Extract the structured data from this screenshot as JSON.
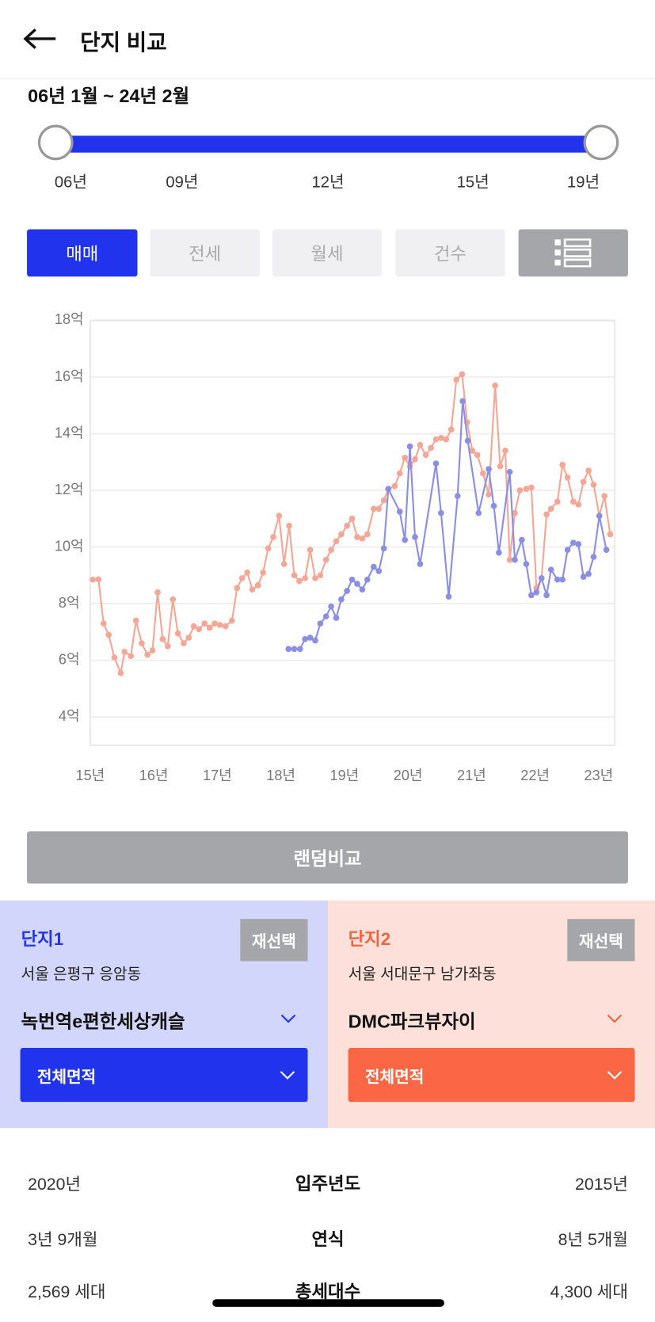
{
  "header": {
    "title": "단지 비교"
  },
  "period": {
    "range": "06년 1월 ~ 24년 2월",
    "labels": [
      "06년",
      "09년",
      "12년",
      "15년",
      "19년"
    ]
  },
  "tabs": [
    "매매",
    "전세",
    "월세",
    "건수"
  ],
  "chart_data": {
    "type": "line",
    "xlim": [
      15,
      23.25
    ],
    "xticks": [
      {
        "value": 15,
        "label": "15년"
      },
      {
        "value": 16,
        "label": "16년"
      },
      {
        "value": 17,
        "label": "17년"
      },
      {
        "value": 18,
        "label": "18년"
      },
      {
        "value": 19,
        "label": "19년"
      },
      {
        "value": 20,
        "label": "20년"
      },
      {
        "value": 21,
        "label": "21년"
      },
      {
        "value": 22,
        "label": "22년"
      },
      {
        "value": 23,
        "label": "23년"
      }
    ],
    "ylim": [
      3,
      18
    ],
    "yticks": [
      {
        "value": 4,
        "label": "4억"
      },
      {
        "value": 6,
        "label": "6억"
      },
      {
        "value": 8,
        "label": "8억"
      },
      {
        "value": 10,
        "label": "10억"
      },
      {
        "value": 12,
        "label": "12억"
      },
      {
        "value": 14,
        "label": "14억"
      },
      {
        "value": 16,
        "label": "16억"
      },
      {
        "value": 18,
        "label": "18억"
      }
    ],
    "grid": true,
    "series": [
      {
        "color": "#f4a796",
        "x": [
          15.04,
          15.13,
          15.21,
          15.29,
          15.38,
          15.48,
          15.54,
          15.64,
          15.72,
          15.81,
          15.9,
          15.98,
          16.06,
          16.14,
          16.22,
          16.3,
          16.38,
          16.47,
          16.55,
          16.63,
          16.71,
          16.8,
          16.88,
          16.96,
          17.04,
          17.13,
          17.23,
          17.31,
          17.39,
          17.47,
          17.55,
          17.64,
          17.72,
          17.8,
          17.88,
          17.97,
          18.05,
          18.13,
          18.21,
          18.29,
          18.38,
          18.46,
          18.54,
          18.62,
          18.71,
          18.79,
          18.87,
          18.95,
          19.04,
          19.12,
          19.2,
          19.28,
          19.36,
          19.46,
          19.54,
          19.62,
          19.69,
          19.79,
          19.87,
          19.95,
          20.03,
          20.11,
          20.19,
          20.28,
          20.36,
          20.44,
          20.52,
          20.6,
          20.68,
          20.76,
          20.85,
          20.93,
          21.01,
          21.09,
          21.18,
          21.27,
          21.37,
          21.45,
          21.53,
          21.6,
          21.68,
          21.76,
          21.86,
          21.94,
          22.02,
          22.1,
          22.18,
          22.25,
          22.35,
          22.43,
          22.51,
          22.6,
          22.68,
          22.76,
          22.84,
          22.92,
          23.01,
          23.09,
          23.18
        ],
        "values": [
          8.85,
          8.86,
          7.3,
          6.9,
          6.1,
          5.55,
          6.3,
          6.15,
          7.4,
          6.6,
          6.2,
          6.35,
          8.4,
          6.75,
          6.5,
          8.15,
          6.95,
          6.6,
          6.8,
          7.2,
          7.1,
          7.3,
          7.15,
          7.3,
          7.25,
          7.2,
          7.4,
          8.55,
          8.9,
          9.1,
          8.5,
          8.65,
          9.1,
          9.95,
          10.35,
          11.1,
          9.4,
          10.75,
          9.0,
          8.8,
          8.9,
          9.9,
          8.9,
          9.0,
          9.55,
          9.9,
          10.2,
          10.45,
          10.75,
          11.0,
          10.35,
          10.3,
          10.45,
          11.35,
          11.35,
          11.65,
          12.05,
          12.15,
          12.6,
          13.15,
          12.85,
          13.1,
          13.6,
          13.25,
          13.5,
          13.8,
          13.85,
          13.8,
          14.15,
          15.9,
          16.1,
          14.4,
          13.4,
          13.25,
          12.6,
          11.85,
          15.7,
          12.85,
          13.4,
          9.55,
          11.2,
          12.0,
          12.05,
          12.1,
          8.55,
          8.9,
          11.15,
          11.35,
          11.6,
          12.9,
          12.45,
          11.6,
          11.5,
          12.3,
          12.7,
          12.2,
          11.1,
          11.8,
          10.45
        ]
      },
      {
        "color": "#8b8fe3",
        "x": [
          18.12,
          18.21,
          18.3,
          18.38,
          18.46,
          18.54,
          18.62,
          18.71,
          18.79,
          18.87,
          18.95,
          19.04,
          19.12,
          19.2,
          19.28,
          19.36,
          19.46,
          19.54,
          19.62,
          19.69,
          19.87,
          19.95,
          20.03,
          20.11,
          20.19,
          20.44,
          20.52,
          20.64,
          20.78,
          20.86,
          20.94,
          21.11,
          21.27,
          21.35,
          21.43,
          21.6,
          21.68,
          21.79,
          21.86,
          21.94,
          22.02,
          22.1,
          22.18,
          22.25,
          22.35,
          22.43,
          22.51,
          22.6,
          22.68,
          22.76,
          22.84,
          22.92,
          23.01,
          23.12
        ],
        "values": [
          6.4,
          6.4,
          6.4,
          6.75,
          6.8,
          6.7,
          7.3,
          7.55,
          7.9,
          7.5,
          8.15,
          8.45,
          8.85,
          8.7,
          8.5,
          8.85,
          9.3,
          9.15,
          9.95,
          12.05,
          11.25,
          10.25,
          13.55,
          10.35,
          9.4,
          12.95,
          11.2,
          8.25,
          11.8,
          15.15,
          13.75,
          11.2,
          12.75,
          11.45,
          9.8,
          12.65,
          9.55,
          10.25,
          9.4,
          8.3,
          8.4,
          8.9,
          8.3,
          9.2,
          8.85,
          8.85,
          9.9,
          10.15,
          10.1,
          8.95,
          9.05,
          9.65,
          11.1,
          9.9
        ]
      }
    ]
  },
  "random_button": "랜덤비교",
  "complexes": [
    {
      "label": "단지1",
      "reselect": "재선택",
      "location": "서울 은평구 응암동",
      "name": "녹번역e편한세상캐슬",
      "area": "전체면적"
    },
    {
      "label": "단지2",
      "reselect": "재선택",
      "location": "서울 서대문구 남가좌동",
      "name": "DMC파크뷰자이",
      "area": "전체면적"
    }
  ],
  "table": {
    "rows": [
      [
        "2020년",
        "입주년도",
        "2015년"
      ],
      [
        "3년 9개월",
        "연식",
        "8년 5개월"
      ],
      [
        "2,569 세대",
        "총세대수",
        "4,300 세대"
      ]
    ]
  }
}
